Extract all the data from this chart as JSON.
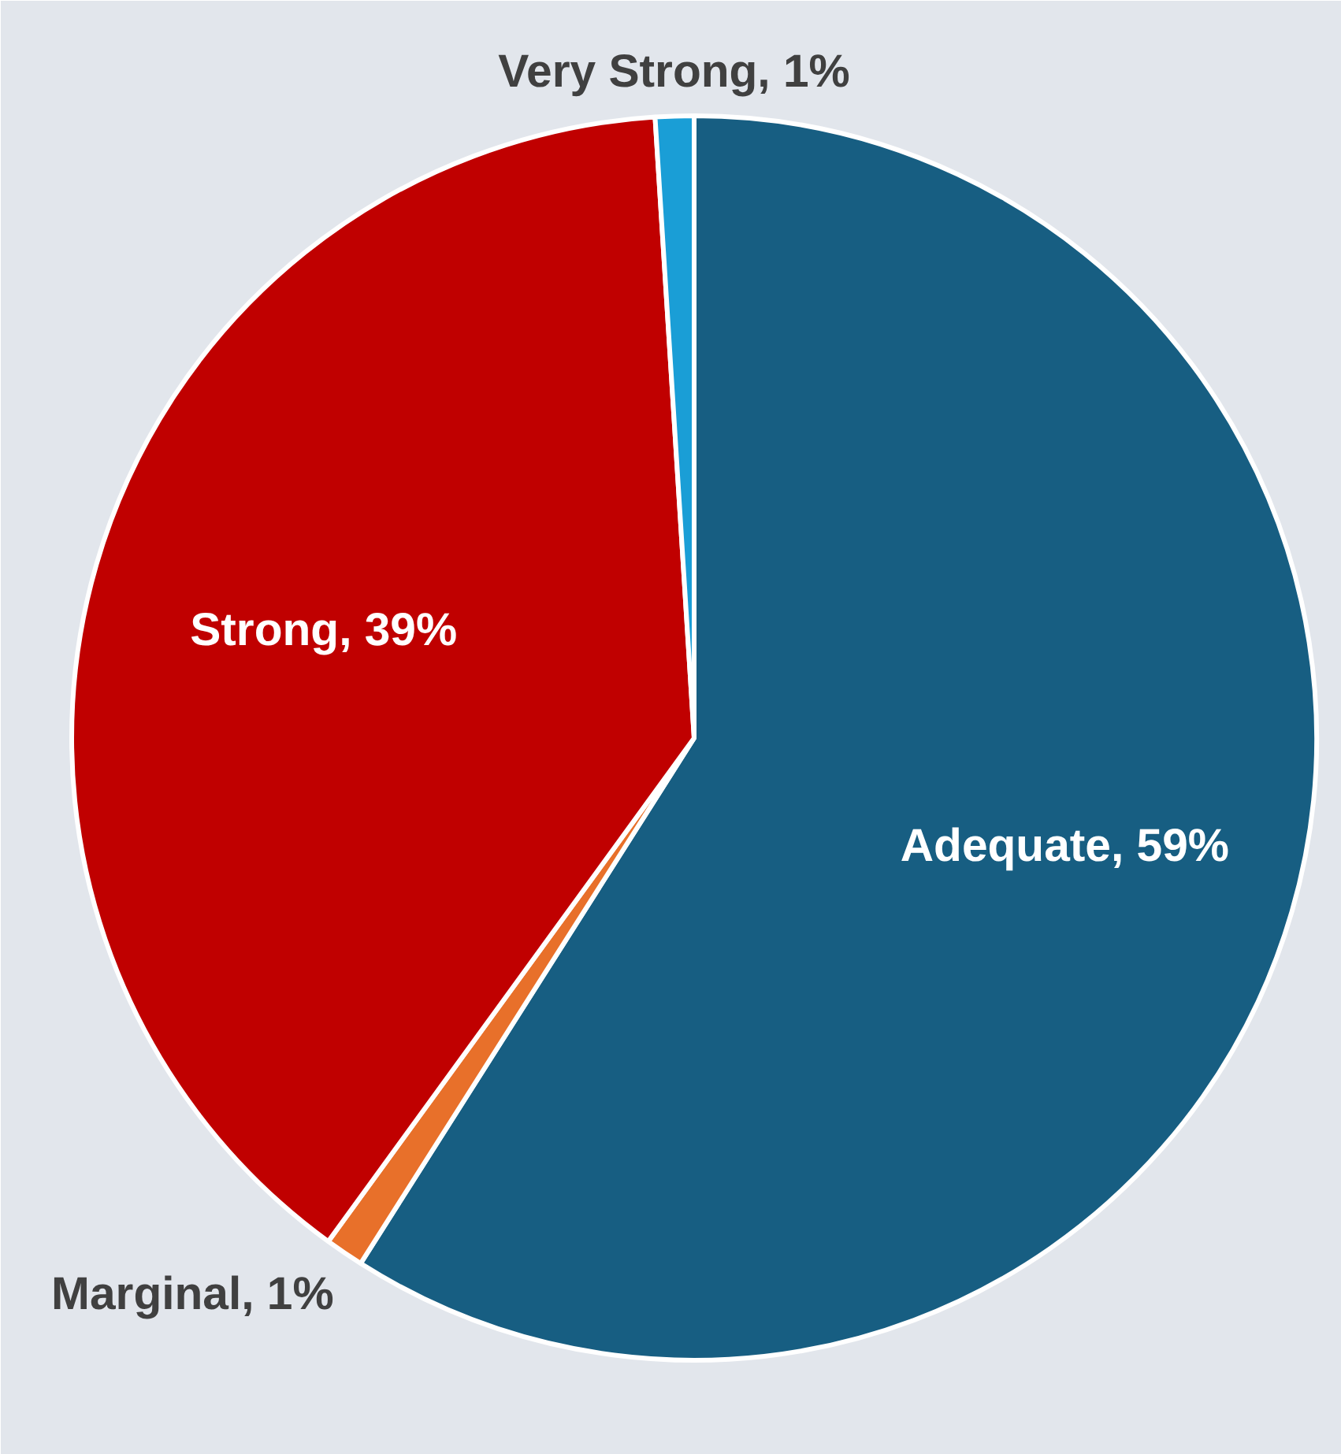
{
  "chart_data": {
    "type": "pie",
    "categories": [
      "Adequate",
      "Marginal",
      "Strong",
      "Very Strong"
    ],
    "values": [
      59,
      1,
      39,
      1
    ],
    "colors": [
      "#175e82",
      "#e8702a",
      "#c00000",
      "#1a9ed6"
    ],
    "value_labels": [
      "59%",
      "1%",
      "39%",
      "1%"
    ],
    "legend": false
  }
}
